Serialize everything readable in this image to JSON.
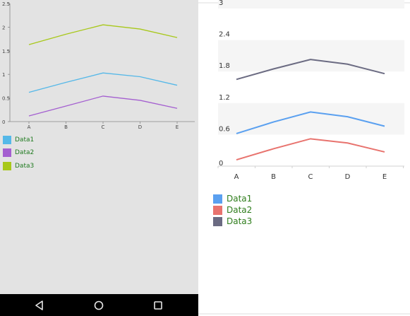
{
  "colors": {
    "left_background": "#e3e3e3",
    "right_background": "#ffffff",
    "left_axis": "#888888",
    "right_band": "#f5f5f5",
    "nav_bar": "#000000",
    "nav_icon": "#e6e6e6"
  },
  "nav_bar": {
    "back_icon": "back-triangle-icon",
    "home_icon": "home-circle-icon",
    "recents_icon": "recents-square-icon"
  },
  "chart_data": [
    {
      "type": "line",
      "title": "",
      "xlabel": "",
      "ylabel": "",
      "categories": [
        "A",
        "B",
        "C",
        "D",
        "E"
      ],
      "ylim": [
        0,
        2.5
      ],
      "y_ticks": [
        "0",
        "0.5",
        "1",
        "1.5",
        "2",
        "2.5"
      ],
      "grid": false,
      "legend_position": "bottom-left",
      "series": [
        {
          "name": "Data1",
          "color": "#55b8e8",
          "values": [
            0.62,
            0.83,
            1.03,
            0.95,
            0.77
          ]
        },
        {
          "name": "Data2",
          "color": "#a45fd0",
          "values": [
            0.12,
            0.33,
            0.54,
            0.45,
            0.28
          ]
        },
        {
          "name": "Data3",
          "color": "#a8c81a",
          "values": [
            1.63,
            1.85,
            2.05,
            1.96,
            1.78
          ]
        }
      ]
    },
    {
      "type": "line",
      "title": "",
      "xlabel": "",
      "ylabel": "",
      "categories": [
        "A",
        "B",
        "C",
        "D",
        "E"
      ],
      "ylim": [
        0,
        3
      ],
      "y_ticks": [
        "0",
        "0.6",
        "1.2",
        "1.8",
        "2.4",
        "3"
      ],
      "grid": "alternating bands",
      "legend_position": "bottom-left",
      "series": [
        {
          "name": "Data1",
          "color": "#5aa0f0",
          "values": [
            0.62,
            0.84,
            1.03,
            0.94,
            0.76
          ]
        },
        {
          "name": "Data2",
          "color": "#e8736e",
          "values": [
            0.12,
            0.33,
            0.52,
            0.44,
            0.27
          ]
        },
        {
          "name": "Data3",
          "color": "#6b6b82",
          "values": [
            1.65,
            1.85,
            2.03,
            1.94,
            1.76
          ]
        }
      ]
    }
  ]
}
